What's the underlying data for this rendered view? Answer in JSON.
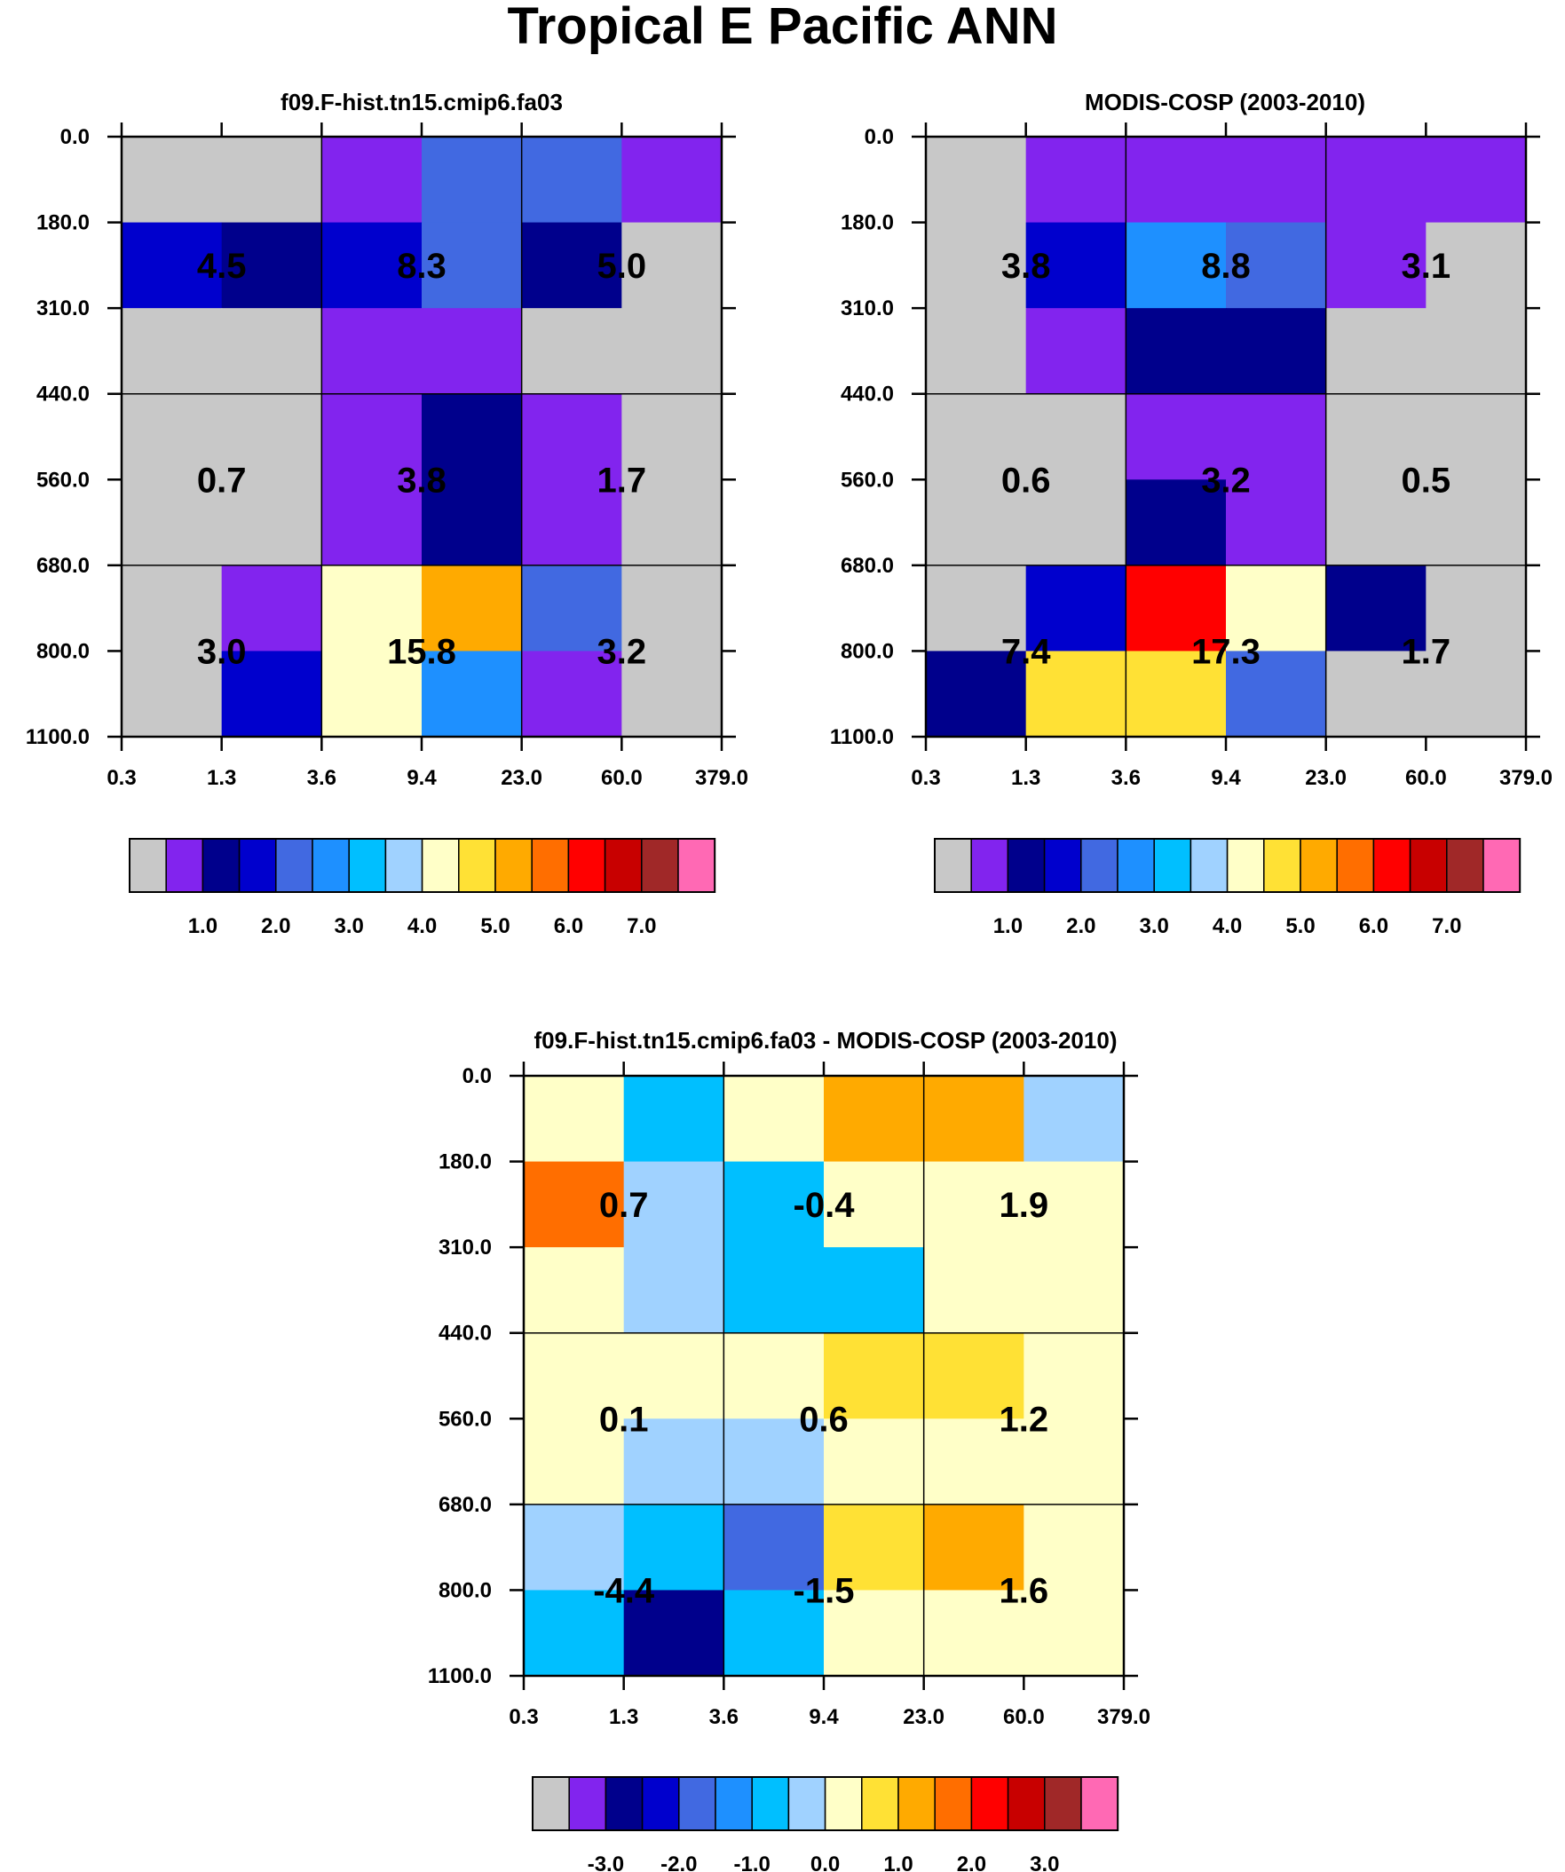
{
  "title": "Tropical E Pacific ANN",
  "palette": [
    "#c8c8c8",
    "#8224ee",
    "#00008c",
    "#0000cd",
    "#4169e1",
    "#1e90ff",
    "#00bfff",
    "#a0d2ff",
    "#ffffc8",
    "#ffe135",
    "#ffaa00",
    "#ff6e00",
    "#ff0000",
    "#c80000",
    "#a02828",
    "#ff69b4"
  ],
  "chart_data": [
    {
      "type": "heatmap",
      "title": "f09.F-hist.tn15.cmip6.fa03",
      "x_tick_labels": [
        "0.3",
        "1.3",
        "3.6",
        "9.4",
        "23.0",
        "60.0",
        "379.0"
      ],
      "y_tick_labels": [
        "0.0",
        "180.0",
        "310.0",
        "440.0",
        "560.0",
        "680.0",
        "800.0",
        "1100.0"
      ],
      "cells": [
        [
          0,
          0,
          1,
          4,
          4,
          1
        ],
        [
          3,
          2,
          3,
          4,
          2,
          0
        ],
        [
          0,
          0,
          1,
          1,
          0,
          0
        ],
        [
          0,
          0,
          1,
          2,
          1,
          0
        ],
        [
          0,
          0,
          1,
          2,
          1,
          0
        ],
        [
          0,
          1,
          8,
          10,
          4,
          0
        ],
        [
          0,
          3,
          8,
          5,
          1,
          0
        ]
      ],
      "box_labels": [
        [
          "4.5",
          "8.3",
          "5.0"
        ],
        [
          "0.7",
          "3.8",
          "1.7"
        ],
        [
          "3.0",
          "15.8",
          "3.2"
        ]
      ],
      "colorbar_labels": [
        "1.0",
        "2.0",
        "3.0",
        "4.0",
        "5.0",
        "6.0",
        "7.0"
      ]
    },
    {
      "type": "heatmap",
      "title": "MODIS-COSP (2003-2010)",
      "x_tick_labels": [
        "0.3",
        "1.3",
        "3.6",
        "9.4",
        "23.0",
        "60.0",
        "379.0"
      ],
      "y_tick_labels": [
        "0.0",
        "180.0",
        "310.0",
        "440.0",
        "560.0",
        "680.0",
        "800.0",
        "1100.0"
      ],
      "cells": [
        [
          0,
          1,
          1,
          1,
          1,
          1
        ],
        [
          0,
          3,
          5,
          4,
          1,
          0
        ],
        [
          0,
          1,
          2,
          2,
          0,
          0
        ],
        [
          0,
          0,
          1,
          1,
          0,
          0
        ],
        [
          0,
          0,
          2,
          1,
          0,
          0
        ],
        [
          0,
          3,
          12,
          8,
          2,
          0
        ],
        [
          2,
          9,
          9,
          4,
          0,
          0
        ]
      ],
      "box_labels": [
        [
          "3.8",
          "8.8",
          "3.1"
        ],
        [
          "0.6",
          "3.2",
          "0.5"
        ],
        [
          "7.4",
          "17.3",
          "1.7"
        ]
      ],
      "colorbar_labels": [
        "1.0",
        "2.0",
        "3.0",
        "4.0",
        "5.0",
        "6.0",
        "7.0"
      ]
    },
    {
      "type": "heatmap",
      "title": "f09.F-hist.tn15.cmip6.fa03 - MODIS-COSP (2003-2010)",
      "x_tick_labels": [
        "0.3",
        "1.3",
        "3.6",
        "9.4",
        "23.0",
        "60.0",
        "379.0"
      ],
      "y_tick_labels": [
        "0.0",
        "180.0",
        "310.0",
        "440.0",
        "560.0",
        "680.0",
        "800.0",
        "1100.0"
      ],
      "cells": [
        [
          8,
          6,
          8,
          10,
          10,
          7
        ],
        [
          11,
          7,
          6,
          8,
          8,
          8
        ],
        [
          8,
          7,
          6,
          6,
          8,
          8
        ],
        [
          8,
          8,
          8,
          9,
          9,
          8
        ],
        [
          8,
          7,
          7,
          8,
          8,
          8
        ],
        [
          7,
          6,
          4,
          9,
          10,
          8
        ],
        [
          6,
          2,
          6,
          8,
          8,
          8
        ]
      ],
      "box_labels": [
        [
          "0.7",
          "-0.4",
          "1.9"
        ],
        [
          "0.1",
          "0.6",
          "1.2"
        ],
        [
          "-4.4",
          "-1.5",
          "1.6"
        ]
      ],
      "colorbar_labels": [
        "-3.0",
        "-2.0",
        "-1.0",
        "0.0",
        "1.0",
        "2.0",
        "3.0"
      ]
    }
  ]
}
